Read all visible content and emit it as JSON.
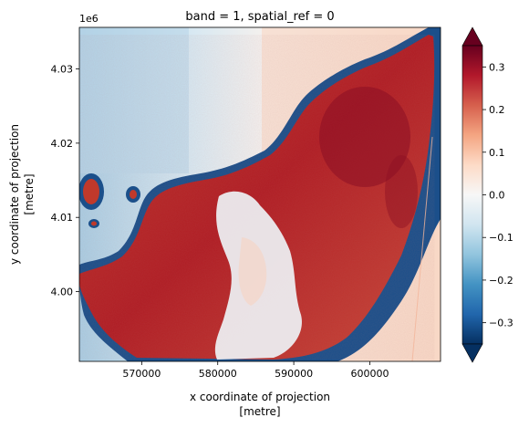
{
  "chart_data": {
    "type": "heatmap",
    "title": "band = 1, spatial_ref = 0",
    "xlabel": "x coordinate of projection",
    "xlabel_unit": "[metre]",
    "ylabel": "y coordinate of projection",
    "ylabel_unit": "[metre]",
    "y_offset_label": "1e6",
    "xlim": [
      561800,
      609300
    ],
    "ylim": [
      3990600,
      4035600
    ],
    "x_ticks": [
      570000,
      580000,
      590000,
      600000
    ],
    "x_tick_labels": [
      "570000",
      "580000",
      "590000",
      "600000"
    ],
    "y_ticks": [
      4000000,
      4010000,
      4020000,
      4030000
    ],
    "y_tick_labels": [
      "4.00",
      "4.01",
      "4.02",
      "4.03"
    ],
    "colorbar": {
      "colormap": "RdBu_r",
      "vmin": -0.35,
      "vmax": 0.35,
      "extend": "both",
      "ticks": [
        -0.3,
        -0.2,
        -0.1,
        0.0,
        0.1,
        0.2,
        0.3
      ],
      "tick_labels": [
        "−0.3",
        "−0.2",
        "−0.1",
        "0.0",
        "0.1",
        "0.2",
        "0.3"
      ],
      "colors": [
        "#053061",
        "#2166ac",
        "#4393c3",
        "#92c5de",
        "#d1e5f0",
        "#f7f7f7",
        "#fddbc7",
        "#f4a582",
        "#d6604d",
        "#b2182b",
        "#67001f"
      ]
    },
    "regions": {
      "sea_values": "≈ -0.05 to 0.05 (light blue to pale orange)",
      "coastline_values": "≈ -0.3 (dark blue)",
      "land_values": "≈ 0.15 to 0.3 (red)",
      "central_patch_values": "≈ -0.05 to 0.05 (white)"
    }
  }
}
